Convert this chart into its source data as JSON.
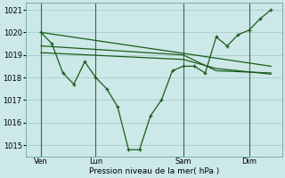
{
  "xlabel": "Pression niveau de la mer( hPa )",
  "background_color": "#cce8e8",
  "grid_color": "#aacccc",
  "line_color": "#1a5c1a",
  "vline_color": "#3a6a3a",
  "ylim": [
    1014.5,
    1021.3
  ],
  "yticks": [
    1015,
    1016,
    1017,
    1018,
    1019,
    1020,
    1021
  ],
  "xlim": [
    -0.2,
    11.5
  ],
  "xtick_labels": [
    "Ven",
    "Lun",
    "Sam",
    "Dim"
  ],
  "xtick_positions": [
    0.5,
    3.0,
    7.0,
    10.0
  ],
  "vline_positions": [
    0.5,
    3.0,
    7.0,
    10.0
  ],
  "series_main": {
    "x": [
      0.5,
      1.0,
      1.5,
      2.0,
      2.5,
      3.0,
      3.5,
      4.0,
      4.5,
      5.0,
      5.5,
      6.0,
      6.5,
      7.0,
      7.5,
      8.0,
      8.5,
      9.0,
      9.5,
      10.0,
      10.5,
      11.0
    ],
    "y": [
      1020.0,
      1019.5,
      1018.2,
      1017.7,
      1018.7,
      1018.0,
      1017.5,
      1016.7,
      1014.8,
      1014.8,
      1016.3,
      1017.0,
      1018.3,
      1018.5,
      1018.5,
      1018.2,
      1019.8,
      1019.4,
      1019.9,
      1020.1,
      1020.6,
      1021.0
    ]
  },
  "series_flat1": {
    "x": [
      0.5,
      11.0
    ],
    "y": [
      1020.0,
      1018.5
    ]
  },
  "series_flat2": {
    "x": [
      0.5,
      7.0,
      8.5,
      11.0
    ],
    "y": [
      1019.4,
      1019.0,
      1018.3,
      1018.2
    ]
  },
  "series_flat3": {
    "x": [
      0.5,
      7.0,
      8.5,
      11.0
    ],
    "y": [
      1019.1,
      1018.8,
      1018.4,
      1018.15
    ]
  },
  "xlabel_fontsize": 6.5,
  "tick_fontsize": 6,
  "figsize": [
    3.2,
    2.0
  ],
  "dpi": 100
}
